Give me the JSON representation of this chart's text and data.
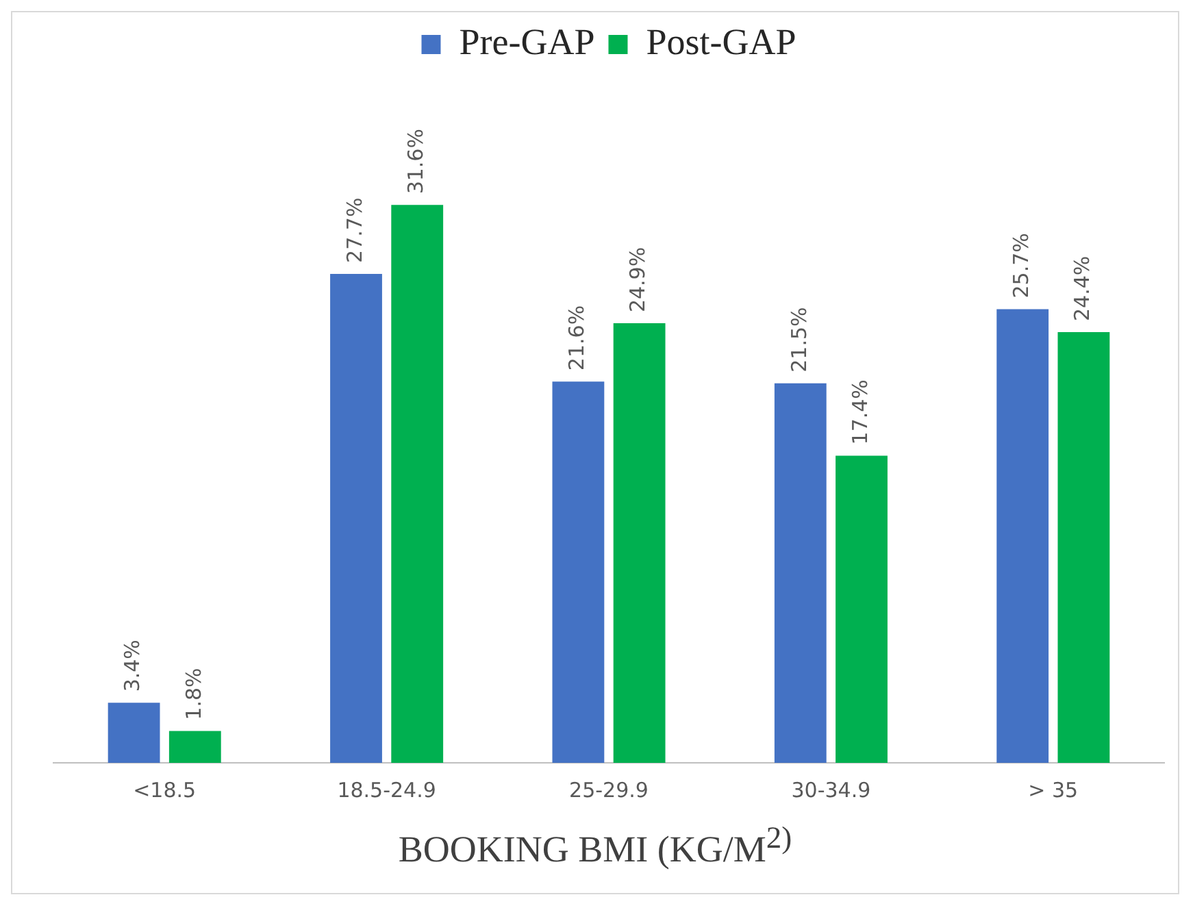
{
  "chart_data": {
    "type": "bar",
    "xlabel": "BOOKING BMI (KG/M$^{2)}$",
    "categories": [
      "<18.5",
      "18.5-24.9",
      "25-29.9",
      "30-34.9",
      "> 35"
    ],
    "series": [
      {
        "name": "Pre-GAP",
        "color": "#4472c4",
        "values": [
          3.4,
          27.7,
          21.6,
          21.5,
          25.7
        ],
        "value_labels": [
          "3.4%",
          "27.7%",
          "21.6%",
          "21.5%",
          "25.7%"
        ]
      },
      {
        "name": "Post-GAP",
        "color": "#00b050",
        "values": [
          1.8,
          31.6,
          24.9,
          17.4,
          24.4
        ],
        "value_labels": [
          "1.8%",
          "31.6%",
          "24.9%",
          "17.4%",
          "24.4%"
        ]
      }
    ],
    "legend": "top",
    "grid": false
  }
}
